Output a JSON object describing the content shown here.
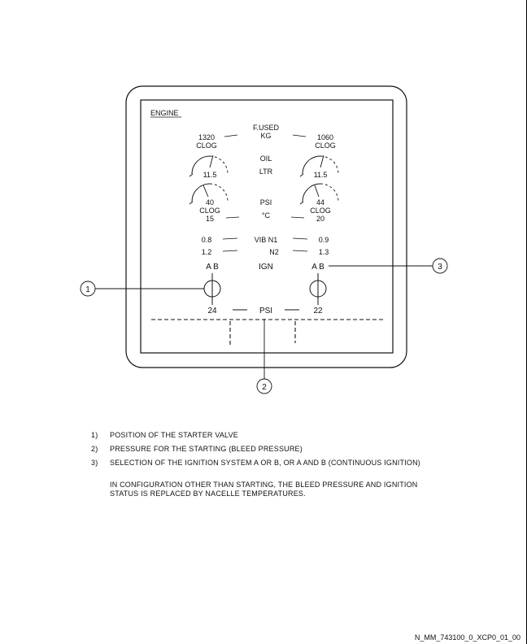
{
  "display": {
    "title": "ENGINE",
    "center_labels": {
      "fused_line1": "F.USED",
      "fused_line2": "KG",
      "oil": "OIL",
      "ltr": "LTR",
      "psi_oil": "PSI",
      "oil_temp_unit": "°C",
      "vib_n1": "VIB N1",
      "vib_n2": "N2",
      "ign": "IGN",
      "bleed_psi": "PSI"
    },
    "left_engine": {
      "fuel_used": "1320",
      "fuel_clog": "CLOG",
      "oil_qty": "11.5",
      "oil_press": "40",
      "oil_clog": "CLOG",
      "oil_temp": "15",
      "vib_n1": "0.8",
      "vib_n2": "1.2",
      "ign_ab": "A B",
      "bleed_psi": "24"
    },
    "right_engine": {
      "fuel_used": "1060",
      "fuel_clog": "CLOG",
      "oil_qty": "11.5",
      "oil_press": "44",
      "oil_clog": "CLOG",
      "oil_temp": "20",
      "vib_n1": "0.9",
      "vib_n2": "1.3",
      "ign_ab": "A B",
      "bleed_psi": "22"
    }
  },
  "callouts": [
    "1",
    "2",
    "3"
  ],
  "legend": [
    {
      "num": "1)",
      "text": "POSITION OF THE STARTER VALVE"
    },
    {
      "num": "2)",
      "text": "PRESSURE FOR THE STARTING (BLEED PRESSURE)"
    },
    {
      "num": "3)",
      "text": "SELECTION OF THE IGNITION SYSTEM A OR B, OR A AND B (CONTINUOUS IGNITION)"
    }
  ],
  "note": "IN CONFIGURATION OTHER THAN STARTING, THE BLEED PRESSURE AND IGNITION STATUS IS REPLACED BY NACELLE TEMPERATURES.",
  "doc_ref": "N_MM_743100_0_XCP0_01_00"
}
